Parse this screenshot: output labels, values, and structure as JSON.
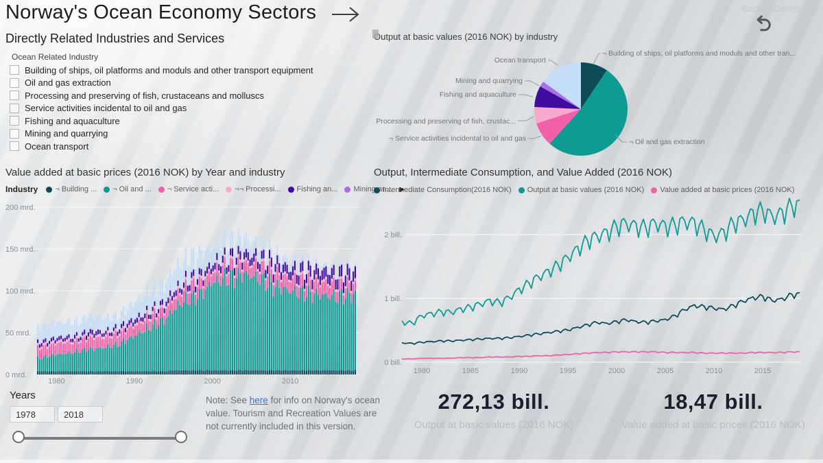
{
  "header": {
    "title": "Norway's Ocean Economy Sectors",
    "subtitle": "Directly Related Industries and Services",
    "back_link": "Back to Dashboard"
  },
  "slicer": {
    "title": "Ocean Related Industry",
    "items": [
      "Building of ships, oil platforms and moduls and other transport equipment",
      "Oil and gas extraction",
      "Processing and preserving of fish, crustaceans and molluscs",
      "Service activities incidental to oil and gas",
      "Fishing and aquaculture",
      "Mining and quarrying",
      "Ocean transport"
    ]
  },
  "years_slicer": {
    "label": "Years",
    "start": "1978",
    "end": "2018"
  },
  "note": {
    "prefix": "Note: See ",
    "link_text": "here",
    "suffix": " for info on Norway's ocean value. Tourism and Recreation Values are not currently included in this version."
  },
  "cards": [
    {
      "value": "272,13 bill.",
      "label": "Output at basic values (2016 NOK)"
    },
    {
      "value": "18,47 bill.",
      "label": "Value added at basic prices (2016 NOK)"
    }
  ],
  "colors": {
    "dark_teal": "#0d4c57",
    "teal": "#0f9a93",
    "hot_pink": "#f45fa9",
    "light_pink": "#f8a9cd",
    "dark_purple": "#3f0d9e",
    "light_purple": "#a96ee8",
    "light_blue": "#c4ddf8",
    "axis_gray": "#8a9094",
    "label_gray": "#767676"
  },
  "chart_data": [
    {
      "id": "pie",
      "type": "pie",
      "title": "Output at basic values (2016 NOK) by industry",
      "unit": "percent of output",
      "slices": [
        {
          "label": "¬ Building of ships, oil platforms and moduls and other tran...",
          "percent": 9.4,
          "color": "#0d4c57"
        },
        {
          "label": "¬ Oil and gas extraction",
          "percent": 52.3,
          "color": "#0f9a93"
        },
        {
          "label": "¬ Service activities incidental to oil and gas",
          "percent": 8.3,
          "color": "#f45fa9"
        },
        {
          "label": "¬¬ Processing and preserving of fish, crustac...",
          "percent": 5.7,
          "color": "#f8a9cd"
        },
        {
          "label": "Fishing and aquaculture",
          "percent": 7.4,
          "color": "#3f0d9e"
        },
        {
          "label": "Mining and quarrying",
          "percent": 1.9,
          "color": "#a96ee8"
        },
        {
          "label": "Ocean transport",
          "percent": 15.0,
          "color": "#c4ddf8"
        }
      ]
    },
    {
      "id": "bars",
      "type": "bar",
      "stacked": true,
      "period": "quarterly",
      "title": "Value added at basic prices (2016 NOK) by Year and industry",
      "legend_title": "Industry",
      "legend": [
        {
          "label": "¬ Building ...",
          "color": "#0d4c57"
        },
        {
          "label": "¬ Oil and ...",
          "color": "#0f9a93"
        },
        {
          "label": "¬ Service acti...",
          "color": "#f45fa9"
        },
        {
          "label": "¬¬ Processi...",
          "color": "#f8a9cd"
        },
        {
          "label": "Fishing an...",
          "color": "#3f0d9e"
        },
        {
          "label": "Mining an...",
          "color": "#a96ee8"
        }
      ],
      "year_start": 1978,
      "year_end": 2018,
      "ylim": [
        0,
        200
      ],
      "y_ticks": [
        "0 mrd.",
        "50 mrd.",
        "100 mrd.",
        "150 mrd.",
        "200 mrd."
      ],
      "x_ticks": [
        1980,
        1990,
        2000,
        2010
      ],
      "seasonal_pattern": [
        1.05,
        0.93,
        0.97,
        1.05
      ],
      "series": [
        {
          "name": "Building of ships, oil platforms and moduls and other transport equipment",
          "color": "#0d4c57",
          "annual_values": [
            4,
            4,
            4,
            4,
            4,
            4,
            4,
            4,
            4,
            4,
            4,
            4,
            4,
            4,
            4,
            4,
            4,
            5,
            5,
            5,
            5,
            5,
            5,
            5,
            5,
            5,
            5,
            5,
            5,
            5,
            5,
            5,
            5,
            5,
            5,
            5,
            5,
            5,
            5,
            5,
            5
          ]
        },
        {
          "name": "Oil and gas extraction",
          "color": "#0f9a93",
          "annual_values": [
            16,
            18,
            20,
            21,
            22,
            24,
            26,
            27,
            28,
            30,
            32,
            37,
            42,
            47,
            52,
            57,
            62,
            72,
            80,
            85,
            88,
            95,
            105,
            108,
            110,
            112,
            115,
            113,
            110,
            105,
            100,
            98,
            95,
            93,
            92,
            91,
            90,
            89,
            88,
            89,
            90
          ]
        },
        {
          "name": "Service activities incidental to oil and gas",
          "color": "#f45fa9",
          "annual_values": [
            12,
            12,
            13,
            13,
            12,
            12,
            13,
            13,
            12,
            12,
            12,
            12,
            12,
            12,
            12,
            12,
            12,
            13,
            13,
            14,
            14,
            13,
            12,
            13,
            13,
            13,
            13,
            13,
            14,
            14,
            15,
            15,
            14,
            14,
            14,
            14,
            15,
            15,
            13,
            12,
            12
          ]
        },
        {
          "name": "Processing and preserving of fish, crustaceans and molluscs",
          "color": "#f8a9cd",
          "annual_values": [
            3,
            3,
            3,
            3,
            3,
            3,
            3,
            3,
            3,
            3,
            3,
            3,
            3,
            3,
            3,
            3,
            3,
            3,
            3,
            3,
            3,
            3,
            3,
            3,
            3,
            3,
            3,
            3,
            3,
            3,
            3,
            3,
            3,
            3,
            3,
            3,
            3,
            3,
            3,
            3,
            3
          ]
        },
        {
          "name": "Fishing and aquaculture",
          "color": "#3f0d9e",
          "annual_values": [
            4,
            4,
            4,
            4,
            4,
            4,
            5,
            5,
            4,
            4,
            5,
            5,
            5,
            5,
            5,
            5,
            6,
            6,
            6,
            7,
            7,
            7,
            7,
            8,
            8,
            9,
            9,
            9,
            9,
            10,
            10,
            10,
            10,
            11,
            11,
            12,
            12,
            12,
            12,
            13,
            13
          ]
        },
        {
          "name": "Mining and quarrying",
          "color": "#a96ee8",
          "annual_values": [
            0.5,
            0.5,
            0.5,
            0.5,
            0.5,
            0.5,
            0.5,
            0.5,
            0.5,
            0.5,
            0.5,
            0.5,
            0.5,
            0.5,
            0.5,
            0.5,
            0.5,
            0.5,
            0.5,
            0.5,
            0.5,
            0.5,
            0.5,
            0.5,
            0.5,
            0.5,
            0.5,
            0.5,
            0.5,
            0.5,
            0.5,
            0.5,
            0.5,
            0.5,
            0.5,
            0.5,
            0.5,
            0.5,
            0.5,
            0.5,
            0.5
          ]
        },
        {
          "name": "Ocean transport",
          "color": "#c4ddf8",
          "annual_values": [
            16,
            17,
            18,
            17,
            17,
            17,
            17,
            16,
            16,
            15,
            14,
            17,
            20,
            21,
            22,
            22,
            22,
            25,
            25,
            25,
            24,
            22,
            20,
            19,
            18,
            18,
            18,
            15,
            12,
            11,
            10,
            9,
            8,
            7,
            6,
            5,
            5,
            4,
            4,
            4,
            4
          ]
        }
      ]
    },
    {
      "id": "lines",
      "type": "line",
      "period": "quarterly",
      "title": "Output, Intermediate Consumption, and Value Added (2016 NOK)",
      "year_start": 1978,
      "year_end": 2018,
      "ylim": [
        0,
        2.6
      ],
      "y_ticks": [
        "0 bill.",
        "1 bill.",
        "2 bill."
      ],
      "x_ticks": [
        1980,
        1985,
        1990,
        1995,
        2000,
        2005,
        2010,
        2015
      ],
      "seasonal_pattern": [
        0.4,
        -1,
        0.5,
        1
      ],
      "series": [
        {
          "name": "Intermediate Consumption(2016 NOK)",
          "color": "#0d4c57",
          "seasonal_amp": 0.035,
          "annual_values": [
            0.3,
            0.29,
            0.31,
            0.32,
            0.33,
            0.33,
            0.34,
            0.35,
            0.36,
            0.37,
            0.37,
            0.38,
            0.4,
            0.42,
            0.44,
            0.46,
            0.48,
            0.5,
            0.54,
            0.58,
            0.62,
            0.6,
            0.63,
            0.66,
            0.63,
            0.62,
            0.64,
            0.66,
            0.72,
            0.82,
            0.88,
            0.86,
            0.84,
            0.82,
            0.88,
            0.95,
            1.0,
            1.02,
            0.96,
            0.98,
            1.05
          ]
        },
        {
          "name": "Output at basic values (2016 NOK)",
          "color": "#0f9a93",
          "seasonal_amp": 0.06,
          "annual_values": [
            0.62,
            0.6,
            0.72,
            0.75,
            0.78,
            0.77,
            0.82,
            0.85,
            0.9,
            0.95,
            0.92,
            1.0,
            1.12,
            1.22,
            1.32,
            1.4,
            1.5,
            1.62,
            1.75,
            1.88,
            1.95,
            2.0,
            2.1,
            2.15,
            2.1,
            2.08,
            2.15,
            2.1,
            2.12,
            2.18,
            2.15,
            2.05,
            1.95,
            2.0,
            2.15,
            2.2,
            2.3,
            2.35,
            2.25,
            2.3,
            2.42
          ]
        },
        {
          "name": "Value added at basic prices (2016 NOK)",
          "color": "#f45fa9",
          "seasonal_amp": 0.05,
          "annual_values": [
            0.05,
            0.05,
            0.06,
            0.06,
            0.06,
            0.06,
            0.07,
            0.07,
            0.07,
            0.08,
            0.08,
            0.08,
            0.09,
            0.09,
            0.1,
            0.1,
            0.11,
            0.12,
            0.13,
            0.14,
            0.15,
            0.15,
            0.16,
            0.16,
            0.16,
            0.16,
            0.16,
            0.15,
            0.15,
            0.15,
            0.15,
            0.14,
            0.14,
            0.14,
            0.14,
            0.14,
            0.15,
            0.15,
            0.15,
            0.15,
            0.16
          ]
        }
      ]
    }
  ]
}
